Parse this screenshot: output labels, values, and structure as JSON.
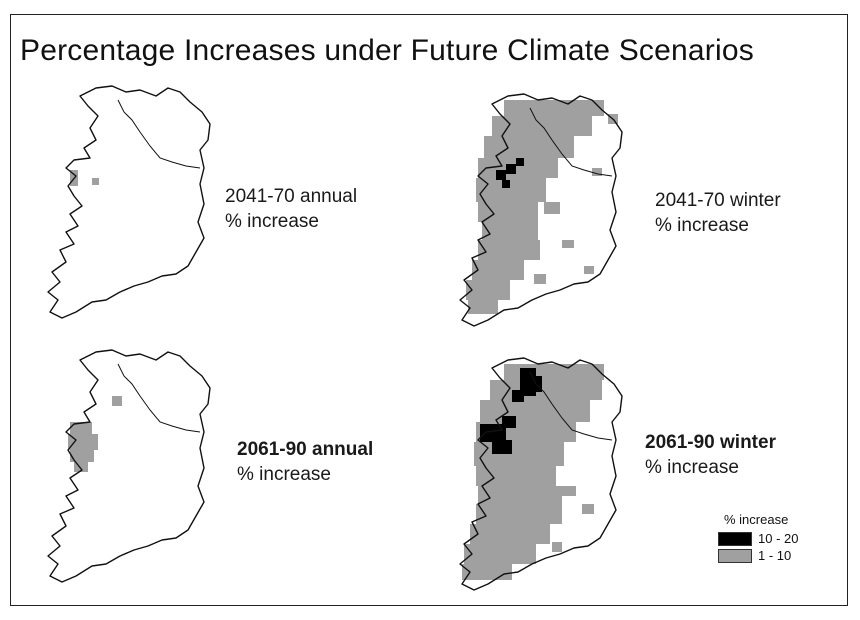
{
  "title": "Percentage Increases under Future Climate Scenarios",
  "panels": [
    {
      "period": "2041-70 annual",
      "subtitle": "% increase",
      "bold": false
    },
    {
      "period": "2041-70 winter",
      "subtitle": "% increase",
      "bold": false
    },
    {
      "period": "2061-90 annual",
      "subtitle": "% increase",
      "bold": true
    },
    {
      "period": "2061-90 winter",
      "subtitle": "% increase",
      "bold": true
    }
  ],
  "legend": {
    "title": "% increase",
    "classes": [
      {
        "label": "10 - 20",
        "color": "#000000"
      },
      {
        "label": "1 - 10",
        "color": "#a0a0a0"
      }
    ]
  },
  "colors": {
    "high": "#000000",
    "low": "#a0a0a0",
    "outline": "#111111"
  }
}
